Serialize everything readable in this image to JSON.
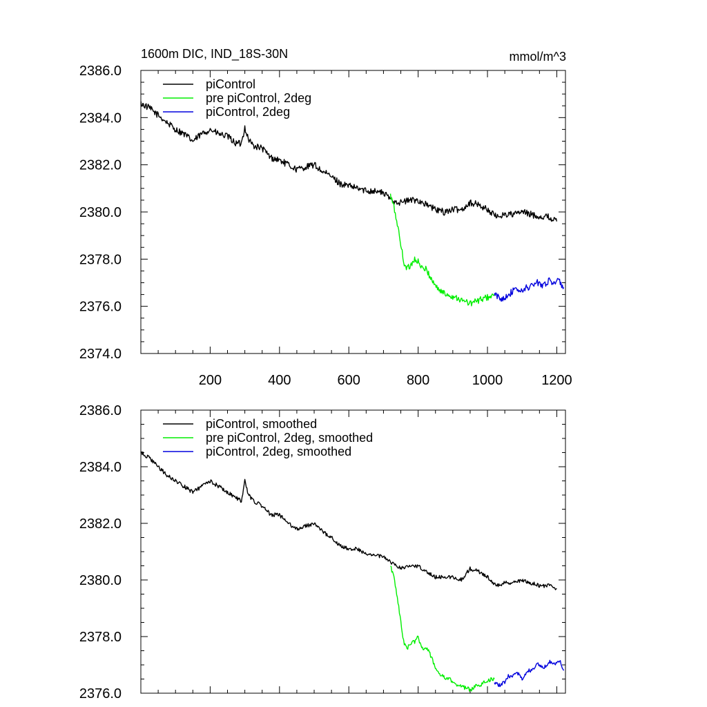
{
  "figure": {
    "title": "1600m DIC, IND_18S-30N",
    "units": "mmol/m^3"
  },
  "colors": {
    "picontrol": "#000000",
    "pre_picontrol_2deg": "#00ee00",
    "picontrol_2deg": "#0000dd",
    "axis": "#000000"
  },
  "chart_data": [
    {
      "type": "line",
      "title": "1600m DIC, IND_18S-30N",
      "ylabel": "mmol/m^3",
      "xlabel": "",
      "xlim": [
        0,
        1225
      ],
      "ylim": [
        2374.0,
        2386.0
      ],
      "xticks": [
        200,
        400,
        600,
        800,
        1000,
        1200
      ],
      "xtick_labels": [
        "200",
        "400",
        "600",
        "800",
        "1000",
        "1200"
      ],
      "yticks": [
        2374.0,
        2376.0,
        2378.0,
        2380.0,
        2382.0,
        2384.0,
        2386.0
      ],
      "ytick_labels": [
        "2374.0",
        "2376.0",
        "2378.0",
        "2380.0",
        "2382.0",
        "2384.0",
        "2386.0"
      ],
      "legend": [
        "piControl",
        "pre piControl, 2deg",
        "piControl, 2deg"
      ],
      "legend_position": "top-left",
      "series": [
        {
          "name": "piControl",
          "color_key": "picontrol",
          "x": [
            0,
            25,
            50,
            75,
            100,
            125,
            150,
            175,
            200,
            225,
            250,
            275,
            290,
            300,
            310,
            325,
            350,
            375,
            400,
            425,
            450,
            475,
            500,
            525,
            550,
            575,
            600,
            625,
            650,
            675,
            700,
            725,
            750,
            775,
            800,
            825,
            850,
            875,
            900,
            925,
            950,
            975,
            1000,
            1025,
            1050,
            1075,
            1100,
            1125,
            1150,
            1175,
            1200
          ],
          "y": [
            2384.6,
            2384.4,
            2384.1,
            2383.8,
            2383.5,
            2383.3,
            2383.0,
            2383.3,
            2383.5,
            2383.3,
            2383.2,
            2382.9,
            2382.9,
            2383.6,
            2383.1,
            2382.8,
            2382.7,
            2382.3,
            2382.2,
            2382.0,
            2381.8,
            2381.9,
            2382.0,
            2381.7,
            2381.5,
            2381.2,
            2381.1,
            2381.0,
            2380.9,
            2380.9,
            2380.8,
            2380.5,
            2380.4,
            2380.5,
            2380.5,
            2380.3,
            2380.1,
            2380.0,
            2380.1,
            2380.1,
            2380.4,
            2380.3,
            2380.1,
            2379.8,
            2379.9,
            2379.9,
            2380.0,
            2379.9,
            2379.8,
            2379.8,
            2379.6
          ]
        },
        {
          "name": "pre piControl, 2deg",
          "color_key": "pre_picontrol_2deg",
          "x": [
            720,
            730,
            740,
            750,
            760,
            770,
            780,
            790,
            800,
            810,
            820,
            830,
            840,
            850,
            860,
            870,
            880,
            890,
            900,
            910,
            920,
            930,
            940,
            950,
            960,
            970,
            980,
            990,
            1000,
            1010,
            1020
          ],
          "y": [
            2380.7,
            2380.2,
            2379.5,
            2378.6,
            2377.8,
            2377.6,
            2377.8,
            2378.0,
            2377.9,
            2377.6,
            2377.6,
            2377.4,
            2377.1,
            2376.9,
            2376.7,
            2376.6,
            2376.5,
            2376.5,
            2376.4,
            2376.4,
            2376.3,
            2376.2,
            2376.2,
            2376.1,
            2376.2,
            2376.2,
            2376.3,
            2376.3,
            2376.4,
            2376.4,
            2376.5
          ]
        },
        {
          "name": "piControl, 2deg",
          "color_key": "picontrol_2deg",
          "x": [
            1020,
            1030,
            1040,
            1050,
            1060,
            1070,
            1080,
            1090,
            1100,
            1110,
            1120,
            1130,
            1140,
            1150,
            1160,
            1170,
            1180,
            1190,
            1200,
            1210,
            1220
          ],
          "y": [
            2376.5,
            2376.4,
            2376.3,
            2376.4,
            2376.5,
            2376.6,
            2376.7,
            2376.7,
            2376.6,
            2376.8,
            2376.8,
            2376.9,
            2377.0,
            2377.0,
            2376.9,
            2377.0,
            2377.1,
            2377.0,
            2377.1,
            2377.0,
            2376.8
          ]
        }
      ]
    },
    {
      "type": "line",
      "title": "",
      "ylabel": "",
      "xlabel": "",
      "xlim": [
        0,
        1225
      ],
      "ylim": [
        2376.0,
        2386.0
      ],
      "xticks": [
        200,
        400,
        600,
        800,
        1000,
        1200
      ],
      "yticks": [
        2376.0,
        2378.0,
        2380.0,
        2382.0,
        2384.0,
        2386.0
      ],
      "ytick_labels": [
        "2376.0",
        "2378.0",
        "2380.0",
        "2382.0",
        "2384.0",
        "2386.0"
      ],
      "legend": [
        "piControl, smoothed",
        "pre piControl, 2deg, smoothed",
        "piControl, 2deg, smoothed"
      ],
      "legend_position": "top-left",
      "series": [
        {
          "name": "piControl, smoothed",
          "color_key": "picontrol",
          "x": [
            0,
            25,
            50,
            75,
            100,
            125,
            150,
            175,
            200,
            225,
            250,
            275,
            290,
            300,
            310,
            325,
            350,
            375,
            400,
            425,
            450,
            475,
            500,
            525,
            550,
            575,
            600,
            625,
            650,
            675,
            700,
            725,
            750,
            775,
            800,
            825,
            850,
            875,
            900,
            925,
            950,
            975,
            1000,
            1025,
            1050,
            1075,
            1100,
            1125,
            1150,
            1175,
            1200
          ],
          "y": [
            2384.5,
            2384.3,
            2384.0,
            2383.7,
            2383.5,
            2383.3,
            2383.1,
            2383.3,
            2383.5,
            2383.3,
            2383.1,
            2382.9,
            2382.8,
            2383.5,
            2383.0,
            2382.8,
            2382.6,
            2382.3,
            2382.3,
            2382.0,
            2381.8,
            2381.9,
            2382.0,
            2381.7,
            2381.5,
            2381.2,
            2381.1,
            2381.1,
            2380.9,
            2380.9,
            2380.8,
            2380.6,
            2380.4,
            2380.5,
            2380.5,
            2380.3,
            2380.1,
            2380.1,
            2380.1,
            2380.0,
            2380.4,
            2380.3,
            2380.1,
            2379.8,
            2379.9,
            2379.9,
            2380.0,
            2379.9,
            2379.8,
            2379.8,
            2379.7
          ]
        },
        {
          "name": "pre piControl, 2deg, smoothed",
          "color_key": "pre_picontrol_2deg",
          "x": [
            720,
            730,
            740,
            750,
            760,
            770,
            780,
            790,
            800,
            810,
            820,
            830,
            840,
            850,
            860,
            870,
            880,
            890,
            900,
            910,
            920,
            930,
            940,
            950,
            960,
            970,
            980,
            990,
            1000,
            1010,
            1020
          ],
          "y": [
            2380.5,
            2380.1,
            2379.4,
            2378.5,
            2377.7,
            2377.6,
            2377.8,
            2377.8,
            2378.0,
            2377.6,
            2377.6,
            2377.5,
            2377.2,
            2376.9,
            2376.7,
            2376.6,
            2376.5,
            2376.5,
            2376.4,
            2376.3,
            2376.3,
            2376.2,
            2376.2,
            2376.1,
            2376.2,
            2376.3,
            2376.3,
            2376.4,
            2376.4,
            2376.5,
            2376.5
          ]
        },
        {
          "name": "piControl, 2deg, smoothed",
          "color_key": "picontrol_2deg",
          "x": [
            1020,
            1030,
            1040,
            1050,
            1060,
            1070,
            1080,
            1090,
            1100,
            1110,
            1120,
            1130,
            1140,
            1150,
            1160,
            1170,
            1180,
            1190,
            1200,
            1210,
            1220
          ],
          "y": [
            2376.4,
            2376.3,
            2376.3,
            2376.4,
            2376.6,
            2376.6,
            2376.7,
            2376.7,
            2376.5,
            2376.7,
            2376.8,
            2376.8,
            2377.0,
            2377.0,
            2376.9,
            2377.0,
            2377.1,
            2377.0,
            2377.1,
            2377.1,
            2376.8
          ]
        }
      ]
    }
  ]
}
